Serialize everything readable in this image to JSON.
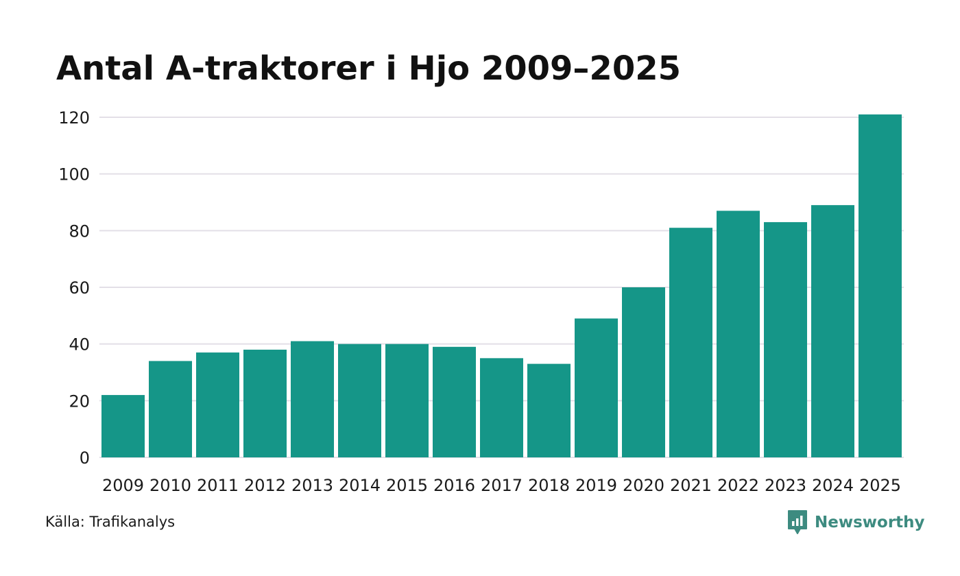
{
  "chart_data": {
    "type": "bar",
    "title": "Antal A-traktorer i Hjo 2009–2025",
    "categories": [
      "2009",
      "2010",
      "2011",
      "2012",
      "2013",
      "2014",
      "2015",
      "2016",
      "2017",
      "2018",
      "2019",
      "2020",
      "2021",
      "2022",
      "2023",
      "2024",
      "2025"
    ],
    "values": [
      22,
      34,
      37,
      38,
      41,
      40,
      40,
      39,
      35,
      33,
      49,
      60,
      81,
      87,
      83,
      89,
      121
    ],
    "xlabel": "",
    "ylabel": "",
    "ylim": [
      0,
      120
    ],
    "yticks": [
      0,
      20,
      40,
      60,
      80,
      100,
      120
    ],
    "grid": true,
    "legend": "none",
    "bar_color": "#159688",
    "grid_color": "#e3dfe7"
  },
  "footer": {
    "source": "Källa: Trafikanalys",
    "brand": "Newsworthy",
    "brand_icon": "newsworthy-logo-icon",
    "brand_color": "#3d8b80"
  }
}
